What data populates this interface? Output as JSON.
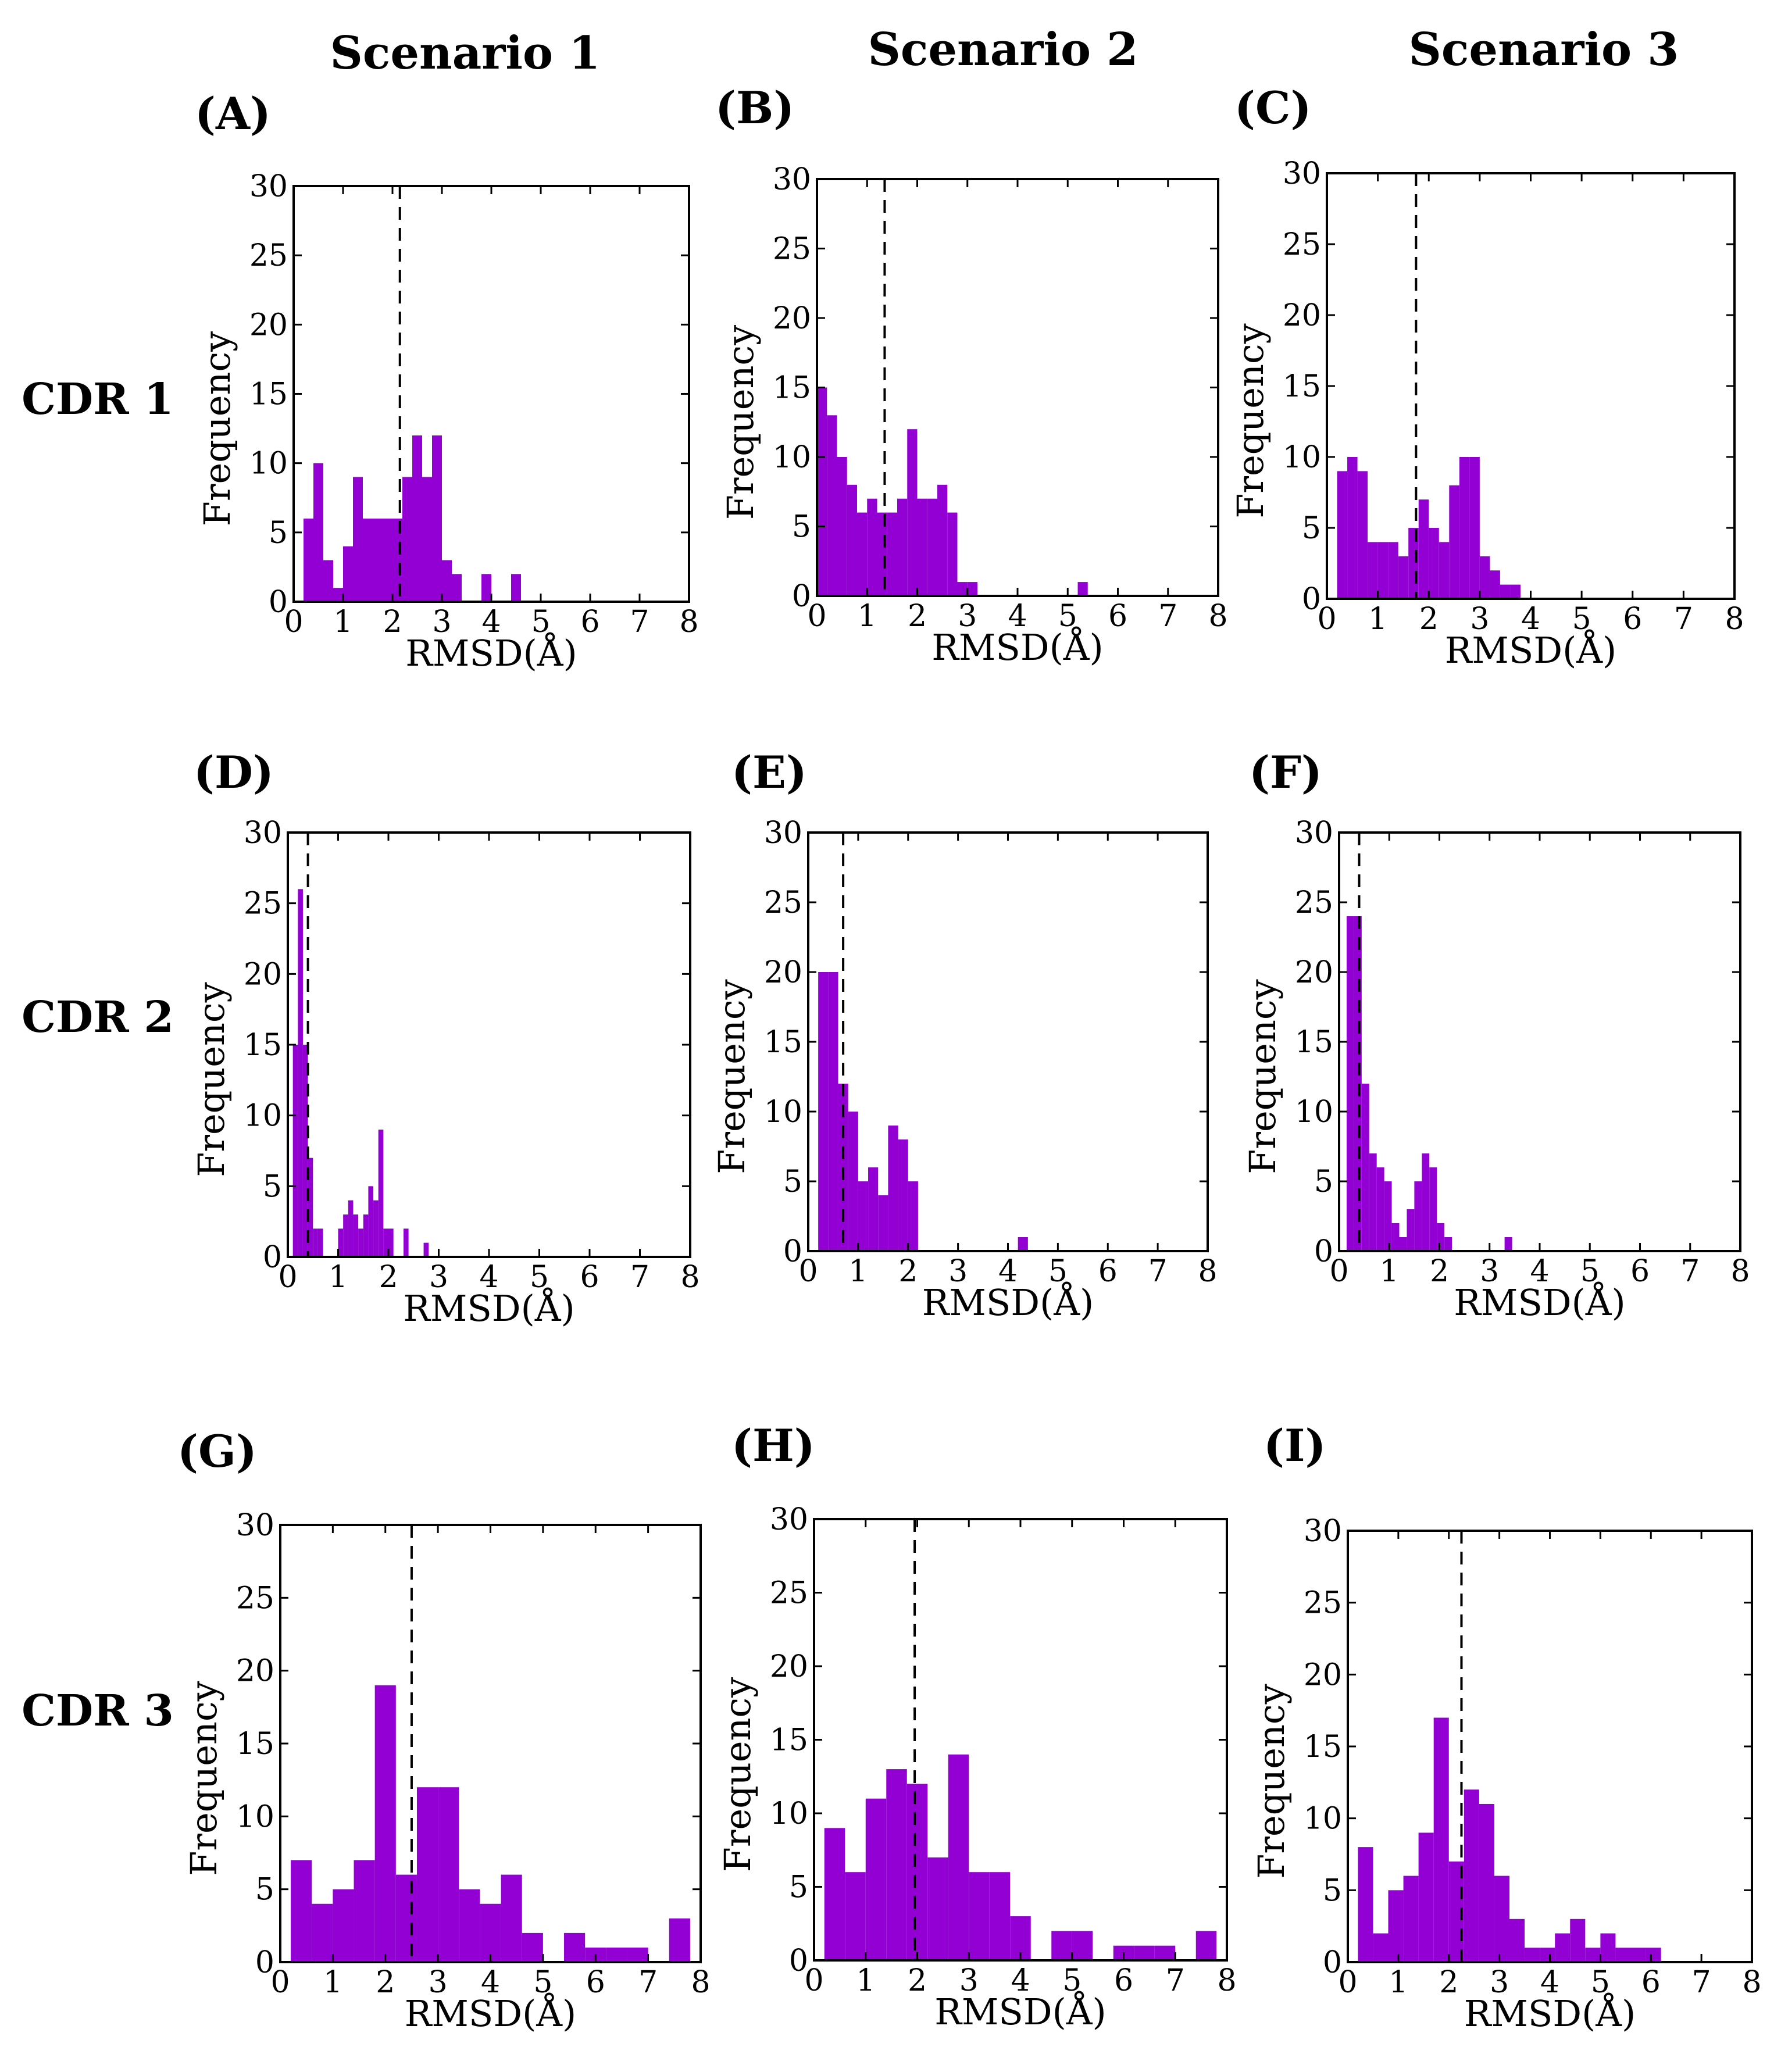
{
  "figure": {
    "column_titles": [
      "Scenario 1",
      "Scenario 2",
      "Scenario 3"
    ],
    "row_titles": [
      "CDR 1",
      "CDR 2",
      "CDR 3"
    ]
  },
  "colors": {
    "bar": "#9300d3",
    "axis": "#000000"
  },
  "chart_data": [
    {
      "panel": "(A)",
      "type": "bar",
      "xlabel": "RMSD(Å)",
      "ylabel": "Frequency",
      "xlim": [
        0,
        8
      ],
      "ylim": [
        0,
        30
      ],
      "xticks": [
        "0",
        "1",
        "2",
        "3",
        "4",
        "5",
        "6",
        "7",
        "8"
      ],
      "yticks": [
        "0",
        "5",
        "10",
        "15",
        "20",
        "25",
        "30"
      ],
      "bin_width": 0.2,
      "bin_starts": [
        0.2,
        0.4,
        0.6,
        0.8,
        1.0,
        1.2,
        1.4,
        1.6,
        1.8,
        2.0,
        2.2,
        2.4,
        2.6,
        2.8,
        3.0,
        3.2,
        3.8,
        4.4
      ],
      "values": [
        6,
        10,
        3,
        1,
        4,
        9,
        6,
        6,
        6,
        6,
        9,
        12,
        9,
        12,
        3,
        2,
        2,
        2
      ],
      "dashed_line_x": 2.15
    },
    {
      "panel": "(B)",
      "type": "bar",
      "xlabel": "RMSD(Å)",
      "ylabel": "Frequency",
      "xlim": [
        0,
        8
      ],
      "ylim": [
        0,
        30
      ],
      "xticks": [
        "0",
        "1",
        "2",
        "3",
        "4",
        "5",
        "6",
        "7",
        "8"
      ],
      "yticks": [
        "0",
        "5",
        "10",
        "15",
        "20",
        "25",
        "30"
      ],
      "bin_width": 0.2,
      "bin_starts": [
        0.0,
        0.2,
        0.4,
        0.6,
        0.8,
        1.0,
        1.2,
        1.4,
        1.6,
        1.8,
        2.0,
        2.2,
        2.4,
        2.6,
        2.8,
        3.0,
        5.2
      ],
      "values": [
        15,
        13,
        10,
        8,
        6,
        7,
        6,
        6,
        7,
        12,
        7,
        7,
        8,
        6,
        1,
        1,
        1
      ],
      "dashed_line_x": 1.35
    },
    {
      "panel": "(C)",
      "type": "bar",
      "xlabel": "RMSD(Å)",
      "ylabel": "Frequency",
      "xlim": [
        0,
        8
      ],
      "ylim": [
        0,
        30
      ],
      "xticks": [
        "0",
        "1",
        "2",
        "3",
        "4",
        "5",
        "6",
        "7",
        "8"
      ],
      "yticks": [
        "0",
        "5",
        "10",
        "15",
        "20",
        "25",
        "30"
      ],
      "bin_width": 0.2,
      "bin_starts": [
        0.2,
        0.4,
        0.6,
        0.8,
        1.0,
        1.2,
        1.4,
        1.6,
        1.8,
        2.0,
        2.2,
        2.4,
        2.6,
        2.8,
        3.0,
        3.2,
        3.4,
        3.6
      ],
      "values": [
        9,
        10,
        9,
        4,
        4,
        4,
        3,
        5,
        7,
        5,
        4,
        8,
        10,
        10,
        3,
        2,
        1,
        1
      ],
      "dashed_line_x": 1.75
    },
    {
      "panel": "(D)",
      "type": "bar",
      "xlabel": "RMSD(Å)",
      "ylabel": "Frequency",
      "xlim": [
        0,
        8
      ],
      "ylim": [
        0,
        30
      ],
      "xticks": [
        "0",
        "1",
        "2",
        "3",
        "4",
        "5",
        "6",
        "7",
        "8"
      ],
      "yticks": [
        "0",
        "5",
        "10",
        "15",
        "20",
        "25",
        "30"
      ],
      "bin_width": 0.1,
      "bin_starts": [
        0.1,
        0.2,
        0.3,
        0.4,
        0.5,
        0.6,
        1.0,
        1.1,
        1.2,
        1.3,
        1.4,
        1.5,
        1.6,
        1.7,
        1.8,
        1.9,
        2.0,
        2.3,
        2.7
      ],
      "values": [
        15,
        26,
        15,
        7,
        2,
        2,
        2,
        3,
        4,
        3,
        2,
        3,
        5,
        4,
        9,
        2,
        2,
        2,
        1
      ],
      "dashed_line_x": 0.4
    },
    {
      "panel": "(E)",
      "type": "bar",
      "xlabel": "RMSD(Å)",
      "ylabel": "Frequency",
      "xlim": [
        0,
        8
      ],
      "ylim": [
        0,
        30
      ],
      "xticks": [
        "0",
        "1",
        "2",
        "3",
        "4",
        "5",
        "6",
        "7",
        "8"
      ],
      "yticks": [
        "0",
        "5",
        "10",
        "15",
        "20",
        "25",
        "30"
      ],
      "bin_width": 0.2,
      "bin_starts": [
        0.2,
        0.4,
        0.6,
        0.8,
        1.0,
        1.2,
        1.4,
        1.6,
        1.8,
        2.0,
        4.2
      ],
      "values": [
        20,
        20,
        12,
        10,
        5,
        6,
        4,
        9,
        8,
        5,
        1
      ],
      "dashed_line_x": 0.7
    },
    {
      "panel": "(F)",
      "type": "bar",
      "xlabel": "RMSD(Å)",
      "ylabel": "Frequency",
      "xlim": [
        0,
        8
      ],
      "ylim": [
        0,
        30
      ],
      "xticks": [
        "0",
        "1",
        "2",
        "3",
        "4",
        "5",
        "6",
        "7",
        "8"
      ],
      "yticks": [
        "0",
        "5",
        "10",
        "15",
        "20",
        "25",
        "30"
      ],
      "bin_width": 0.15,
      "bin_starts": [
        0.15,
        0.3,
        0.45,
        0.6,
        0.75,
        0.9,
        1.05,
        1.2,
        1.35,
        1.5,
        1.65,
        1.8,
        1.95,
        2.1,
        3.3
      ],
      "values": [
        24,
        24,
        12,
        7,
        6,
        5,
        2,
        1,
        3,
        5,
        7,
        6,
        2,
        1,
        1
      ],
      "dashed_line_x": 0.4
    },
    {
      "panel": "(G)",
      "type": "bar",
      "xlabel": "RMSD(Å)",
      "ylabel": "Frequency",
      "xlim": [
        0,
        8
      ],
      "ylim": [
        0,
        30
      ],
      "xticks": [
        "0",
        "1",
        "2",
        "3",
        "4",
        "5",
        "6",
        "7",
        "8"
      ],
      "yticks": [
        "0",
        "5",
        "10",
        "15",
        "20",
        "25",
        "30"
      ],
      "bin_width": 0.4,
      "bin_starts": [
        0.2,
        0.6,
        1.0,
        1.4,
        1.8,
        2.2,
        2.6,
        3.0,
        3.4,
        3.8,
        4.2,
        4.6,
        5.4,
        5.8,
        6.2,
        6.6,
        7.4
      ],
      "values": [
        7,
        4,
        5,
        7,
        19,
        6,
        12,
        12,
        5,
        4,
        6,
        2,
        2,
        1,
        1,
        1,
        3
      ],
      "dashed_line_x": 2.5
    },
    {
      "panel": "(H)",
      "type": "bar",
      "xlabel": "RMSD(Å)",
      "ylabel": "Frequency",
      "xlim": [
        0,
        8
      ],
      "ylim": [
        0,
        30
      ],
      "xticks": [
        "0",
        "1",
        "2",
        "3",
        "4",
        "5",
        "6",
        "7",
        "8"
      ],
      "yticks": [
        "0",
        "5",
        "10",
        "15",
        "20",
        "25",
        "30"
      ],
      "bin_width": 0.4,
      "bin_starts": [
        0.2,
        0.6,
        1.0,
        1.4,
        1.8,
        2.2,
        2.6,
        3.0,
        3.4,
        3.8,
        4.6,
        5.0,
        5.8,
        6.2,
        6.6,
        7.4
      ],
      "values": [
        9,
        6,
        11,
        13,
        12,
        7,
        14,
        6,
        6,
        3,
        2,
        2,
        1,
        1,
        1,
        2
      ],
      "dashed_line_x": 1.95
    },
    {
      "panel": "(I)",
      "type": "bar",
      "xlabel": "RMSD(Å)",
      "ylabel": "Frequency",
      "xlim": [
        0,
        8
      ],
      "ylim": [
        0,
        30
      ],
      "xticks": [
        "0",
        "1",
        "2",
        "3",
        "4",
        "5",
        "6",
        "7",
        "8"
      ],
      "yticks": [
        "0",
        "5",
        "10",
        "15",
        "20",
        "25",
        "30"
      ],
      "bin_width": 0.3,
      "bin_starts": [
        0.2,
        0.5,
        0.8,
        1.1,
        1.4,
        1.7,
        2.0,
        2.3,
        2.6,
        2.9,
        3.2,
        3.5,
        3.8,
        4.1,
        4.4,
        4.7,
        5.0,
        5.3,
        5.6,
        5.9
      ],
      "values": [
        8,
        2,
        5,
        6,
        9,
        17,
        7,
        12,
        11,
        6,
        3,
        1,
        1,
        2,
        3,
        1,
        2,
        1,
        1,
        1
      ],
      "dashed_line_x": 2.25
    }
  ]
}
